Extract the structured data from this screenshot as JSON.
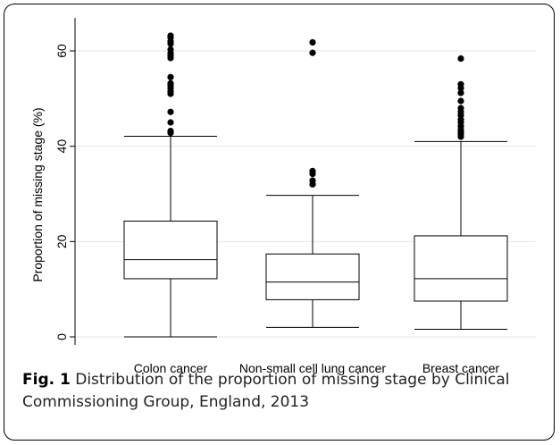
{
  "figure": {
    "label": "Fig. 1",
    "caption": "Distribution of the proportion of missing stage by Clinical Commissioning Group, England, 2013"
  },
  "chart_data": {
    "type": "box",
    "ylabel": "Proportion of missing stage (%)",
    "xlabel": "",
    "ylim": [
      0,
      65
    ],
    "yticks": [
      0,
      20,
      40,
      60
    ],
    "grid": true,
    "categories": [
      "Colon cancer",
      "Non-small cell lung cancer",
      "Breast cancer"
    ],
    "boxes": [
      {
        "category": "Colon cancer",
        "whisker_low": 0,
        "q1": 12.2,
        "median": 16.2,
        "q3": 24.3,
        "whisker_high": 42.1,
        "outliers": [
          42.8,
          43.2,
          45.0,
          47.2,
          51.0,
          51.5,
          52.2,
          52.8,
          53.2,
          54.5,
          58.5,
          59.0,
          59.5,
          60.3,
          61.5,
          62.0,
          62.8,
          63.2
        ]
      },
      {
        "category": "Non-small cell lung cancer",
        "whisker_low": 2.0,
        "q1": 7.8,
        "median": 11.5,
        "q3": 17.4,
        "whisker_high": 29.7,
        "outliers": [
          32.0,
          32.8,
          34.2,
          34.8,
          59.6,
          61.8
        ]
      },
      {
        "category": "Breast cancer",
        "whisker_low": 1.6,
        "q1": 7.5,
        "median": 12.2,
        "q3": 21.2,
        "whisker_high": 41.0,
        "outliers": [
          42.0,
          42.5,
          43.0,
          43.5,
          44.2,
          45.0,
          45.6,
          46.5,
          47.2,
          48.0,
          49.5,
          51.2,
          52.2,
          53.0,
          58.4
        ]
      }
    ]
  }
}
